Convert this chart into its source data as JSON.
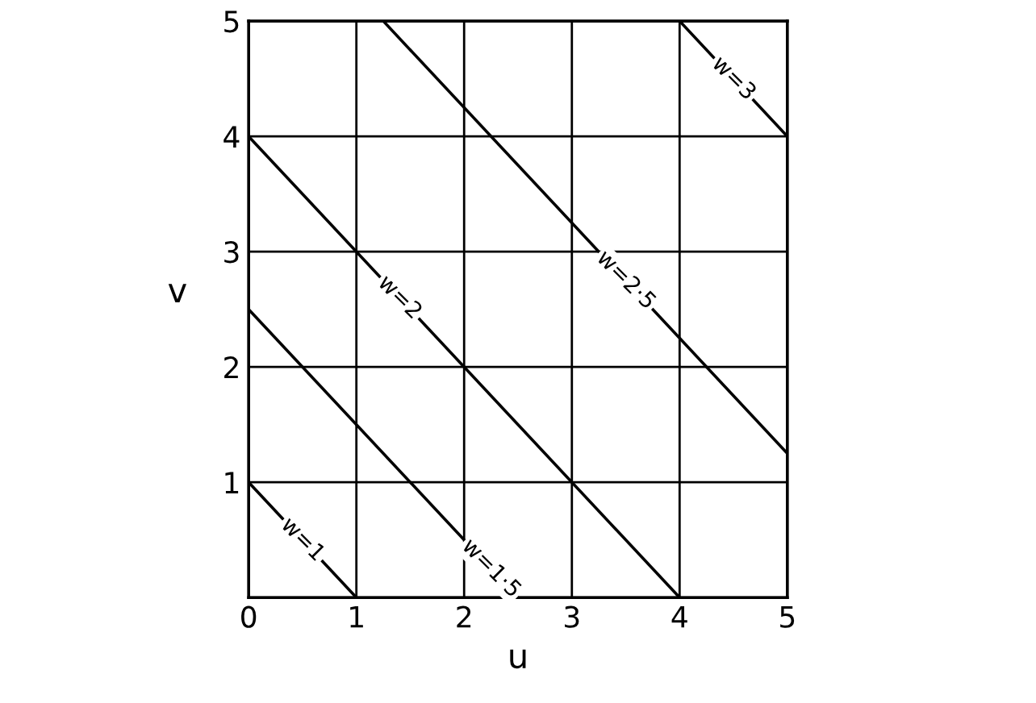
{
  "chart_data": {
    "type": "line",
    "xlabel": "u",
    "ylabel": "v",
    "series": [
      {
        "name": "w=1",
        "color": "#000000",
        "x": [
          0,
          1
        ],
        "values": [
          1,
          0
        ]
      },
      {
        "name": "w=1·5",
        "color": "#000000",
        "x": [
          0,
          2.5
        ],
        "values": [
          2.5,
          0
        ]
      },
      {
        "name": "w=2",
        "color": "#000000",
        "x": [
          0,
          4
        ],
        "values": [
          4,
          0
        ]
      },
      {
        "name": "w=2·5",
        "color": "#000000",
        "x": [
          1.25,
          5
        ],
        "values": [
          5,
          1.25
        ]
      },
      {
        "name": "w=3",
        "color": "#000000",
        "x": [
          4,
          5
        ],
        "values": [
          5,
          4
        ]
      }
    ],
    "xlim": [
      0,
      5
    ],
    "ylim": [
      0,
      5
    ],
    "xticks": [
      0,
      1,
      2,
      3,
      4,
      5
    ],
    "yticks": [
      {
        "value": 0,
        "label": null
      },
      1,
      2,
      3,
      4,
      5
    ],
    "grid": true,
    "legend": false,
    "marker": "none",
    "line_style": "solid"
  }
}
